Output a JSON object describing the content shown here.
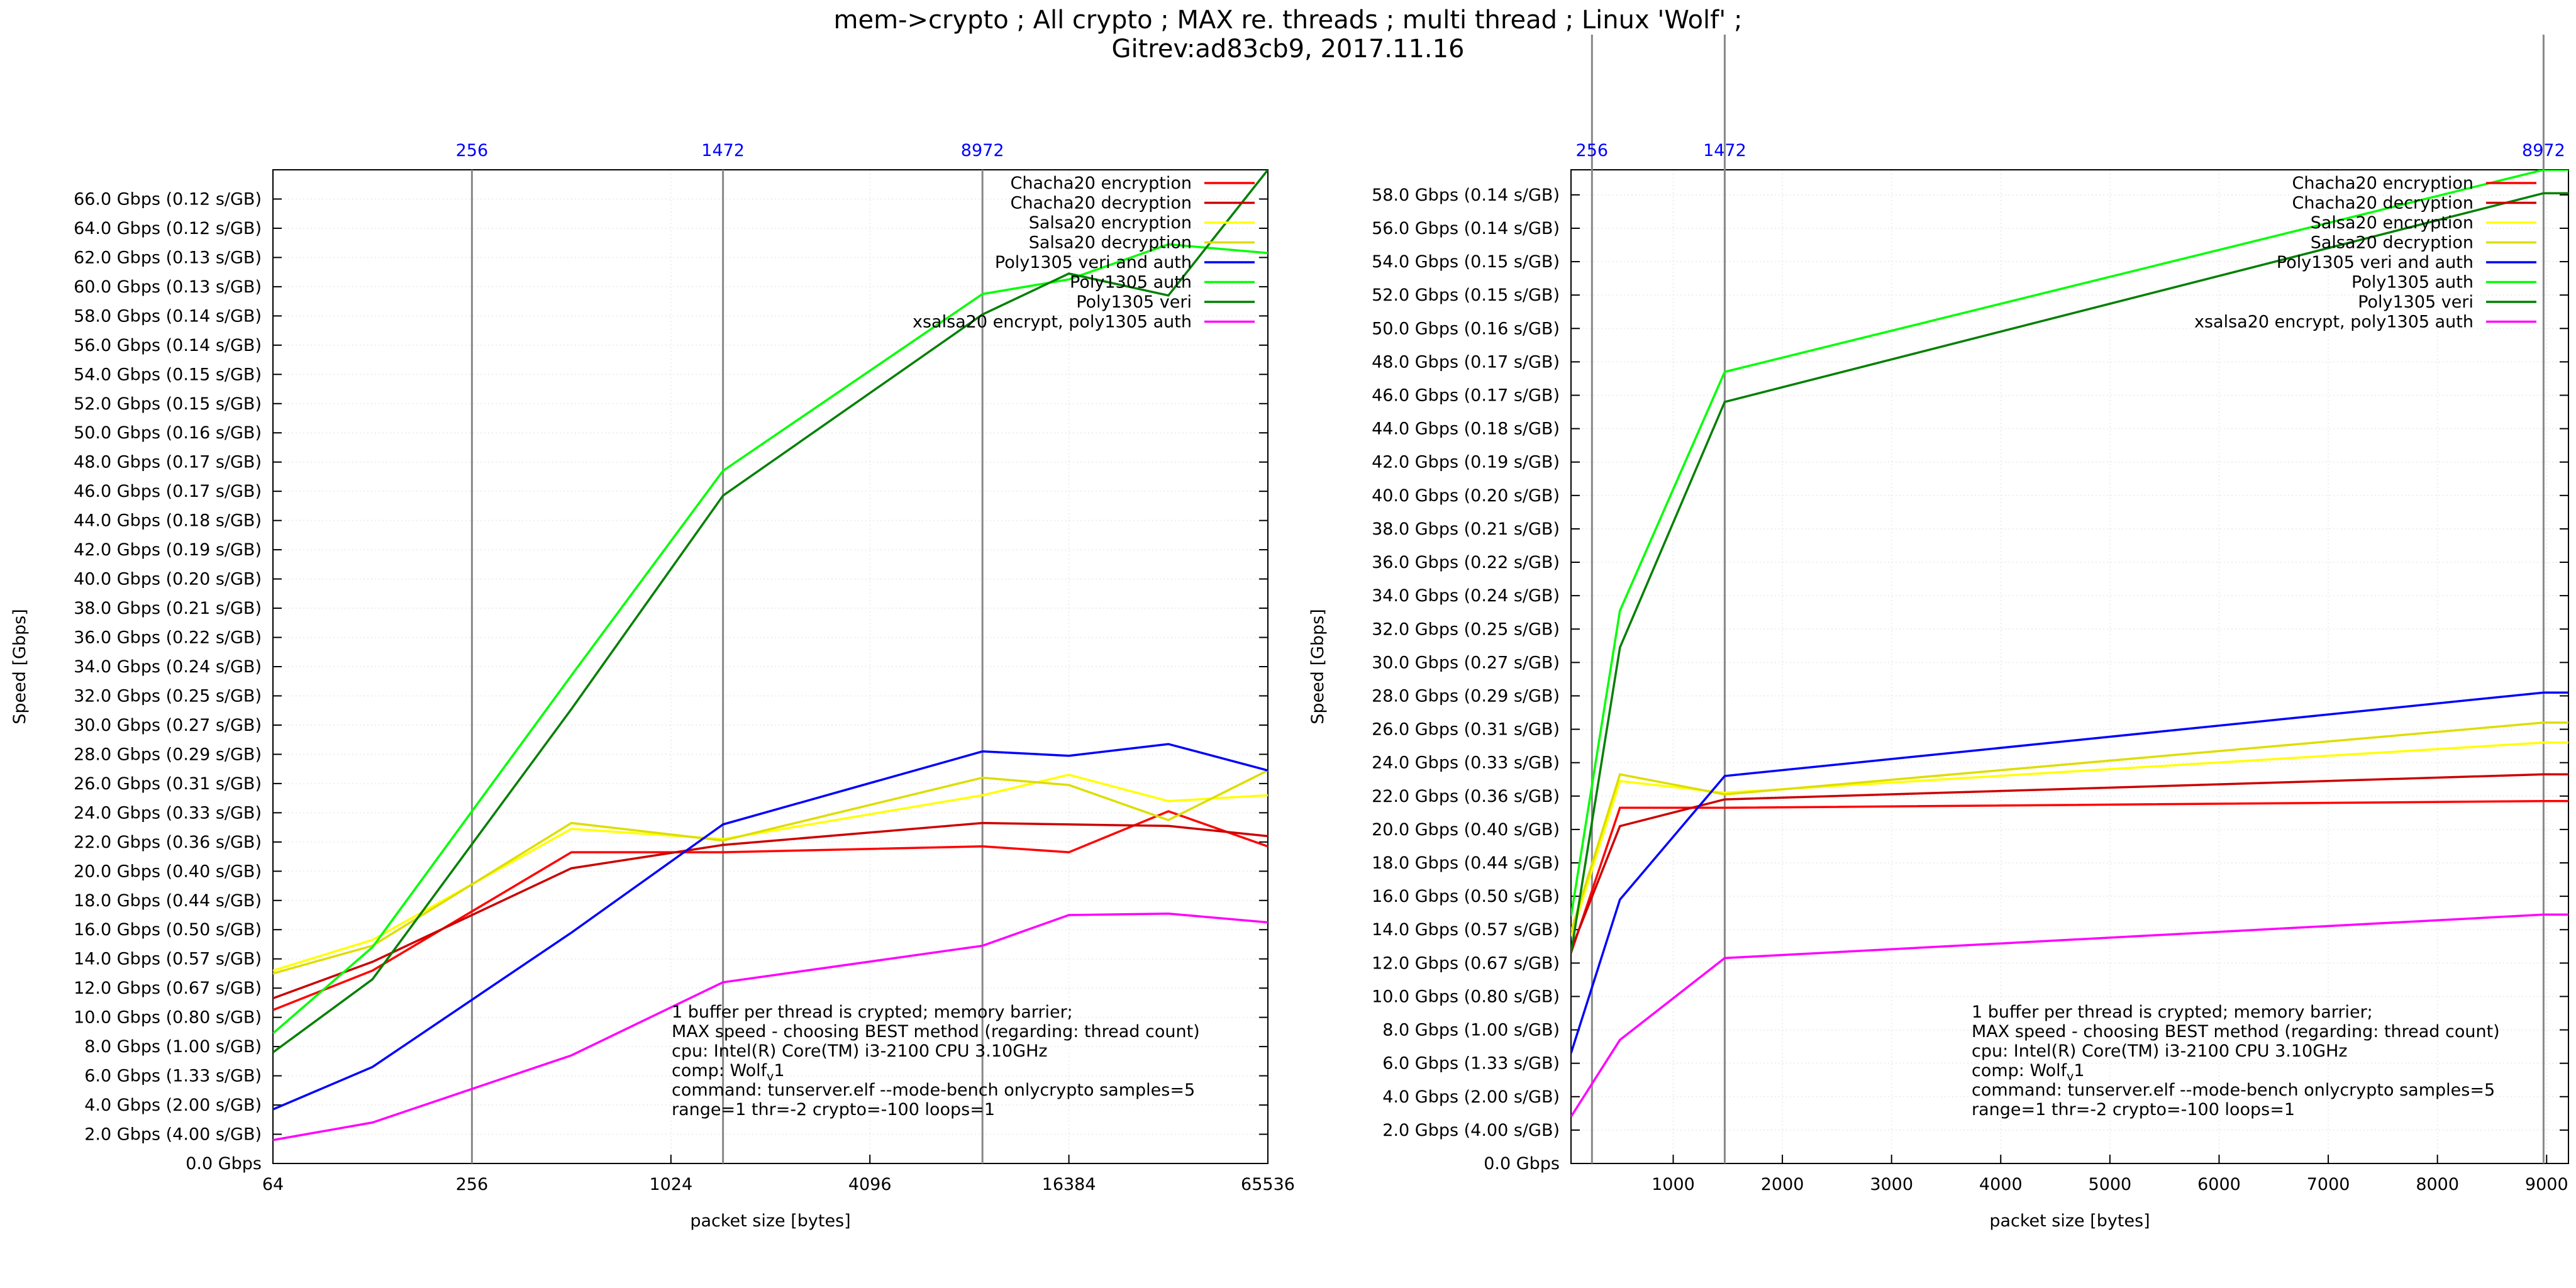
{
  "title": {
    "line1": "mem->crypto ; All crypto ; MAX re. threads ; multi thread ; Linux 'Wolf' ;",
    "line2": "Gitrev:ad83cb9, 2017.11.16"
  },
  "legend": [
    "Chacha20 encryption",
    "Chacha20 decryption",
    "Salsa20 encryption",
    "Salsa20 decryption",
    "Poly1305 veri and auth",
    "Poly1305 auth",
    "Poly1305 veri",
    "xsalsa20 encrypt, poly1305 auth"
  ],
  "annotation": {
    "line1": "1 buffer per thread is crypted; memory barrier;",
    "line2": "MAX speed - choosing BEST method (regarding: thread count)",
    "line3": "cpu: Intel(R) Core(TM) i3-2100 CPU 3.10GHz",
    "line4": "comp: Wolf",
    "line4_sub": "v",
    "line4_end": "1",
    "line5": "command: tunserver.elf --mode-bench onlycrypto samples=5",
    "line6": "range=1 thr=-2 crypto=-100 loops=1"
  },
  "chart_data": [
    {
      "type": "line",
      "xscale": "log2",
      "xlabel": "packet size [bytes]",
      "ylabel": "Speed [Gbps]",
      "xlim": [
        64,
        65536
      ],
      "ylim": [
        0,
        68
      ],
      "xticks": [
        {
          "v": 64,
          "label": "64"
        },
        {
          "v": 256,
          "label": "256"
        },
        {
          "v": 1024,
          "label": "1024"
        },
        {
          "v": 4096,
          "label": "4096"
        },
        {
          "v": 16384,
          "label": "16384"
        },
        {
          "v": 65536,
          "label": "65536"
        }
      ],
      "top_markers": [
        {
          "v": 256,
          "label": "256"
        },
        {
          "v": 1472,
          "label": "1472"
        },
        {
          "v": 8972,
          "label": "8972"
        }
      ],
      "yticks": [
        {
          "v": 0,
          "label": "0.0 Gbps"
        },
        {
          "v": 2,
          "label": "2.0 Gbps (4.00 s/GB)"
        },
        {
          "v": 4,
          "label": "4.0 Gbps (2.00 s/GB)"
        },
        {
          "v": 6,
          "label": "6.0 Gbps (1.33 s/GB)"
        },
        {
          "v": 8,
          "label": "8.0 Gbps (1.00 s/GB)"
        },
        {
          "v": 10,
          "label": "10.0 Gbps (0.80 s/GB)"
        },
        {
          "v": 12,
          "label": "12.0 Gbps (0.67 s/GB)"
        },
        {
          "v": 14,
          "label": "14.0 Gbps (0.57 s/GB)"
        },
        {
          "v": 16,
          "label": "16.0 Gbps (0.50 s/GB)"
        },
        {
          "v": 18,
          "label": "18.0 Gbps (0.44 s/GB)"
        },
        {
          "v": 20,
          "label": "20.0 Gbps (0.40 s/GB)"
        },
        {
          "v": 22,
          "label": "22.0 Gbps (0.36 s/GB)"
        },
        {
          "v": 24,
          "label": "24.0 Gbps (0.33 s/GB)"
        },
        {
          "v": 26,
          "label": "26.0 Gbps (0.31 s/GB)"
        },
        {
          "v": 28,
          "label": "28.0 Gbps (0.29 s/GB)"
        },
        {
          "v": 30,
          "label": "30.0 Gbps (0.27 s/GB)"
        },
        {
          "v": 32,
          "label": "32.0 Gbps (0.25 s/GB)"
        },
        {
          "v": 34,
          "label": "34.0 Gbps (0.24 s/GB)"
        },
        {
          "v": 36,
          "label": "36.0 Gbps (0.22 s/GB)"
        },
        {
          "v": 38,
          "label": "38.0 Gbps (0.21 s/GB)"
        },
        {
          "v": 40,
          "label": "40.0 Gbps (0.20 s/GB)"
        },
        {
          "v": 42,
          "label": "42.0 Gbps (0.19 s/GB)"
        },
        {
          "v": 44,
          "label": "44.0 Gbps (0.18 s/GB)"
        },
        {
          "v": 46,
          "label": "46.0 Gbps (0.17 s/GB)"
        },
        {
          "v": 48,
          "label": "48.0 Gbps (0.17 s/GB)"
        },
        {
          "v": 50,
          "label": "50.0 Gbps (0.16 s/GB)"
        },
        {
          "v": 52,
          "label": "52.0 Gbps (0.15 s/GB)"
        },
        {
          "v": 54,
          "label": "54.0 Gbps (0.15 s/GB)"
        },
        {
          "v": 56,
          "label": "56.0 Gbps (0.14 s/GB)"
        },
        {
          "v": 58,
          "label": "58.0 Gbps (0.14 s/GB)"
        },
        {
          "v": 60,
          "label": "60.0 Gbps (0.13 s/GB)"
        },
        {
          "v": 62,
          "label": "62.0 Gbps (0.13 s/GB)"
        },
        {
          "v": 64,
          "label": "64.0 Gbps (0.12 s/GB)"
        },
        {
          "v": 66,
          "label": "66.0 Gbps (0.12 s/GB)"
        }
      ],
      "grid": true,
      "legend_position": "top-right",
      "series": [
        {
          "name": "Chacha20 encryption",
          "color": "#ff0000",
          "x": [
            64,
            128,
            512,
            1472,
            8972,
            16384,
            32768,
            65536
          ],
          "y": [
            10.5,
            13.2,
            21.3,
            21.3,
            21.7,
            21.3,
            24.1,
            21.7
          ]
        },
        {
          "name": "Chacha20 decryption",
          "color": "#cc0000",
          "x": [
            64,
            128,
            512,
            1472,
            8972,
            16384,
            32768,
            65536
          ],
          "y": [
            11.3,
            13.8,
            20.2,
            21.8,
            23.3,
            23.2,
            23.1,
            22.4
          ]
        },
        {
          "name": "Salsa20 encryption",
          "color": "#ffff00",
          "x": [
            64,
            128,
            512,
            1472,
            8972,
            16384,
            32768,
            65536
          ],
          "y": [
            13.2,
            15.3,
            22.9,
            22.2,
            25.2,
            26.6,
            24.8,
            25.2
          ]
        },
        {
          "name": "Salsa20 decryption",
          "color": "#dddd00",
          "x": [
            64,
            128,
            512,
            1472,
            8972,
            16384,
            32768,
            65536
          ],
          "y": [
            13.0,
            14.9,
            23.3,
            22.1,
            26.4,
            25.9,
            23.5,
            26.9
          ]
        },
        {
          "name": "Poly1305 veri and auth",
          "color": "#0000ff",
          "x": [
            64,
            128,
            512,
            1472,
            8972,
            16384,
            32768,
            65536
          ],
          "y": [
            3.7,
            6.6,
            15.8,
            23.2,
            28.2,
            27.9,
            28.7,
            26.9
          ]
        },
        {
          "name": "Poly1305 auth",
          "color": "#00ff00",
          "x": [
            64,
            128,
            512,
            1472,
            8972,
            16384,
            32768,
            65536
          ],
          "y": [
            8.9,
            14.8,
            33.4,
            47.4,
            59.5,
            60.5,
            62.9,
            62.3
          ]
        },
        {
          "name": "Poly1305 veri",
          "color": "#008000",
          "x": [
            64,
            128,
            512,
            1472,
            8972,
            16384,
            32768,
            65536
          ],
          "y": [
            7.6,
            12.6,
            31.1,
            45.7,
            58.1,
            60.9,
            59.4,
            68.0
          ]
        },
        {
          "name": "xsalsa20 encrypt, poly1305 auth",
          "color": "#ff00ff",
          "x": [
            64,
            128,
            512,
            1472,
            8972,
            16384,
            32768,
            65536
          ],
          "y": [
            1.6,
            2.8,
            7.4,
            12.4,
            14.9,
            17.0,
            17.1,
            16.5
          ]
        }
      ]
    },
    {
      "type": "line",
      "xscale": "linear",
      "xlabel": "packet size [bytes]",
      "ylabel": "Speed [Gbps]",
      "xlim": [
        64,
        9200
      ],
      "ylim": [
        0,
        59.5
      ],
      "xticks": [
        {
          "v": 1000,
          "label": "1000"
        },
        {
          "v": 2000,
          "label": "2000"
        },
        {
          "v": 3000,
          "label": "3000"
        },
        {
          "v": 4000,
          "label": "4000"
        },
        {
          "v": 5000,
          "label": "5000"
        },
        {
          "v": 6000,
          "label": "6000"
        },
        {
          "v": 7000,
          "label": "7000"
        },
        {
          "v": 8000,
          "label": "8000"
        },
        {
          "v": 9000,
          "label": "9000"
        }
      ],
      "top_markers": [
        {
          "v": 256,
          "label": "256"
        },
        {
          "v": 1472,
          "label": "1472"
        },
        {
          "v": 8972,
          "label": "8972"
        }
      ],
      "yticks": [
        {
          "v": 0,
          "label": "0.0 Gbps"
        },
        {
          "v": 2,
          "label": "2.0 Gbps (4.00 s/GB)"
        },
        {
          "v": 4,
          "label": "4.0 Gbps (2.00 s/GB)"
        },
        {
          "v": 6,
          "label": "6.0 Gbps (1.33 s/GB)"
        },
        {
          "v": 8,
          "label": "8.0 Gbps (1.00 s/GB)"
        },
        {
          "v": 10,
          "label": "10.0 Gbps (0.80 s/GB)"
        },
        {
          "v": 12,
          "label": "12.0 Gbps (0.67 s/GB)"
        },
        {
          "v": 14,
          "label": "14.0 Gbps (0.57 s/GB)"
        },
        {
          "v": 16,
          "label": "16.0 Gbps (0.50 s/GB)"
        },
        {
          "v": 18,
          "label": "18.0 Gbps (0.44 s/GB)"
        },
        {
          "v": 20,
          "label": "20.0 Gbps (0.40 s/GB)"
        },
        {
          "v": 22,
          "label": "22.0 Gbps (0.36 s/GB)"
        },
        {
          "v": 24,
          "label": "24.0 Gbps (0.33 s/GB)"
        },
        {
          "v": 26,
          "label": "26.0 Gbps (0.31 s/GB)"
        },
        {
          "v": 28,
          "label": "28.0 Gbps (0.29 s/GB)"
        },
        {
          "v": 30,
          "label": "30.0 Gbps (0.27 s/GB)"
        },
        {
          "v": 32,
          "label": "32.0 Gbps (0.25 s/GB)"
        },
        {
          "v": 34,
          "label": "34.0 Gbps (0.24 s/GB)"
        },
        {
          "v": 36,
          "label": "36.0 Gbps (0.22 s/GB)"
        },
        {
          "v": 38,
          "label": "38.0 Gbps (0.21 s/GB)"
        },
        {
          "v": 40,
          "label": "40.0 Gbps (0.20 s/GB)"
        },
        {
          "v": 42,
          "label": "42.0 Gbps (0.19 s/GB)"
        },
        {
          "v": 44,
          "label": "44.0 Gbps (0.18 s/GB)"
        },
        {
          "v": 46,
          "label": "46.0 Gbps (0.17 s/GB)"
        },
        {
          "v": 48,
          "label": "48.0 Gbps (0.17 s/GB)"
        },
        {
          "v": 50,
          "label": "50.0 Gbps (0.16 s/GB)"
        },
        {
          "v": 52,
          "label": "52.0 Gbps (0.15 s/GB)"
        },
        {
          "v": 54,
          "label": "54.0 Gbps (0.15 s/GB)"
        },
        {
          "v": 56,
          "label": "56.0 Gbps (0.14 s/GB)"
        },
        {
          "v": 58,
          "label": "58.0 Gbps (0.14 s/GB)"
        }
      ],
      "grid": true,
      "legend_position": "top-right",
      "series": [
        {
          "name": "Chacha20 encryption",
          "color": "#ff0000",
          "x": [
            64,
            512,
            1472,
            8972,
            9200
          ],
          "y": [
            12.6,
            21.3,
            21.3,
            21.7,
            21.7
          ]
        },
        {
          "name": "Chacha20 decryption",
          "color": "#cc0000",
          "x": [
            64,
            512,
            1472,
            8972,
            9200
          ],
          "y": [
            12.8,
            20.2,
            21.8,
            23.3,
            23.3
          ]
        },
        {
          "name": "Salsa20 encryption",
          "color": "#ffff00",
          "x": [
            64,
            512,
            1472,
            8972,
            9200
          ],
          "y": [
            13.6,
            22.9,
            22.2,
            25.2,
            25.2
          ]
        },
        {
          "name": "Salsa20 decryption",
          "color": "#dddd00",
          "x": [
            64,
            512,
            1472,
            8972,
            9200
          ],
          "y": [
            13.9,
            23.3,
            22.1,
            26.4,
            26.4
          ]
        },
        {
          "name": "Poly1305 veri and auth",
          "color": "#0000ff",
          "x": [
            64,
            512,
            1472,
            8972,
            9200
          ],
          "y": [
            6.6,
            15.8,
            23.2,
            28.2,
            28.2
          ]
        },
        {
          "name": "Poly1305 auth",
          "color": "#00ff00",
          "x": [
            64,
            512,
            1472,
            8972,
            9200
          ],
          "y": [
            14.8,
            33.1,
            47.4,
            59.5,
            59.5
          ]
        },
        {
          "name": "Poly1305 veri",
          "color": "#008000",
          "x": [
            64,
            512,
            1472,
            8972,
            9200
          ],
          "y": [
            12.6,
            30.9,
            45.6,
            58.1,
            58.1
          ]
        },
        {
          "name": "xsalsa20 encrypt, poly1305 auth",
          "color": "#ff00ff",
          "x": [
            64,
            512,
            1472,
            8972,
            9200
          ],
          "y": [
            2.8,
            7.4,
            12.3,
            14.9,
            14.9
          ]
        }
      ]
    }
  ]
}
